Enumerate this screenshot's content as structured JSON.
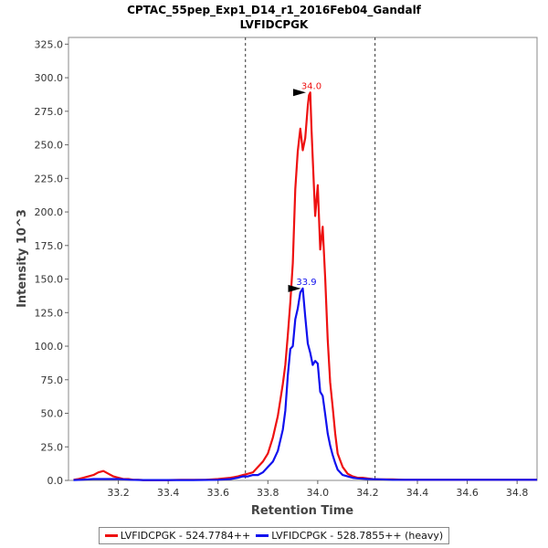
{
  "chart_data": {
    "type": "line",
    "title": "CPTAC_55pep_Exp1_D14_r1_2016Feb04_Gandalf",
    "subtitle": "LVFIDCPGK",
    "xlabel": "Retention Time",
    "ylabel": "Intensity 10^3",
    "xlim": [
      33.0,
      34.88
    ],
    "ylim": [
      0,
      330
    ],
    "x_ticks": [
      "33.2",
      "33.4",
      "33.6",
      "33.8",
      "34.0",
      "34.2",
      "34.4",
      "34.6",
      "34.8"
    ],
    "x_tick_values": [
      33.2,
      33.4,
      33.6,
      33.8,
      34.0,
      34.2,
      34.4,
      34.6,
      34.8
    ],
    "y_ticks": [
      "0.0",
      "25.0",
      "50.0",
      "75.0",
      "100.0",
      "125.0",
      "150.0",
      "175.0",
      "200.0",
      "225.0",
      "250.0",
      "275.0",
      "300.0",
      "325.0"
    ],
    "y_tick_values": [
      0,
      25,
      50,
      75,
      100,
      125,
      150,
      175,
      200,
      225,
      250,
      275,
      300,
      325
    ],
    "vlines": [
      33.71,
      34.23
    ],
    "grid": false,
    "legend_position": "bottom",
    "series": [
      {
        "name": "LVFIDCPGK - 524.7784++",
        "color": "#ee1111",
        "x": [
          33.02,
          33.04,
          33.06,
          33.08,
          33.1,
          33.12,
          33.14,
          33.16,
          33.18,
          33.2,
          33.22,
          33.24,
          33.26,
          33.28,
          33.3,
          33.35,
          33.4,
          33.45,
          33.5,
          33.55,
          33.6,
          33.65,
          33.68,
          33.7,
          33.72,
          33.74,
          33.76,
          33.78,
          33.8,
          33.82,
          33.84,
          33.86,
          33.87,
          33.88,
          33.89,
          33.9,
          33.91,
          33.92,
          33.93,
          33.94,
          33.95,
          33.96,
          33.965,
          33.97,
          33.975,
          33.98,
          33.99,
          34.0,
          34.01,
          34.02,
          34.03,
          34.04,
          34.05,
          34.06,
          34.07,
          34.08,
          34.1,
          34.12,
          34.14,
          34.16,
          34.18,
          34.2,
          34.22,
          34.25,
          34.3,
          34.35,
          34.4,
          34.5,
          34.6,
          34.7,
          34.8,
          34.88
        ],
        "y": [
          0.5,
          1,
          2,
          3,
          4,
          6,
          7,
          5,
          3,
          2,
          1,
          1,
          0.5,
          0.5,
          0.3,
          0.3,
          0.3,
          0.5,
          0.5,
          0.5,
          1,
          2,
          3,
          4,
          5,
          6,
          10,
          14,
          20,
          32,
          48,
          72,
          86,
          108,
          133,
          162,
          217,
          245,
          262,
          246,
          255,
          279,
          287,
          289,
          261,
          240,
          197,
          220,
          172,
          189,
          150,
          105,
          73,
          55,
          35,
          20,
          10,
          5,
          3,
          2,
          2,
          1.5,
          1,
          0.8,
          0.8,
          0.5,
          0.5,
          0.5,
          0.5,
          0.5,
          0.5,
          0.5
        ]
      },
      {
        "name": "LVFIDCPGK - 528.7855++ (heavy)",
        "color": "#1111ee",
        "x": [
          33.02,
          33.05,
          33.1,
          33.15,
          33.2,
          33.25,
          33.3,
          33.4,
          33.5,
          33.6,
          33.65,
          33.68,
          33.7,
          33.72,
          33.74,
          33.76,
          33.78,
          33.8,
          33.82,
          33.84,
          33.86,
          33.87,
          33.88,
          33.89,
          33.9,
          33.91,
          33.92,
          33.93,
          33.94,
          33.95,
          33.96,
          33.97,
          33.98,
          33.99,
          34.0,
          34.01,
          34.02,
          34.03,
          34.04,
          34.05,
          34.06,
          34.07,
          34.08,
          34.1,
          34.12,
          34.14,
          34.16,
          34.2,
          34.25,
          34.3,
          34.4,
          34.5,
          34.6,
          34.7,
          34.8,
          34.88
        ],
        "y": [
          0.3,
          0.5,
          1,
          1,
          1,
          0.5,
          0.3,
          0.3,
          0.3,
          0.5,
          1,
          2,
          3,
          3,
          4,
          4,
          6,
          10,
          14,
          22,
          38,
          52,
          78,
          98,
          100,
          120,
          128,
          140,
          143,
          122,
          102,
          95,
          86,
          89,
          87,
          66,
          63,
          49,
          35,
          26,
          19,
          13,
          8,
          4,
          3,
          2,
          1.5,
          1,
          0.8,
          0.5,
          0.5,
          0.5,
          0.5,
          0.5,
          0.5,
          0.5
        ]
      }
    ],
    "annotations": [
      {
        "text": "34.0",
        "x": 33.96,
        "y": 289,
        "series": 0
      },
      {
        "text": "33.9",
        "x": 33.94,
        "y": 143,
        "series": 1
      }
    ]
  }
}
